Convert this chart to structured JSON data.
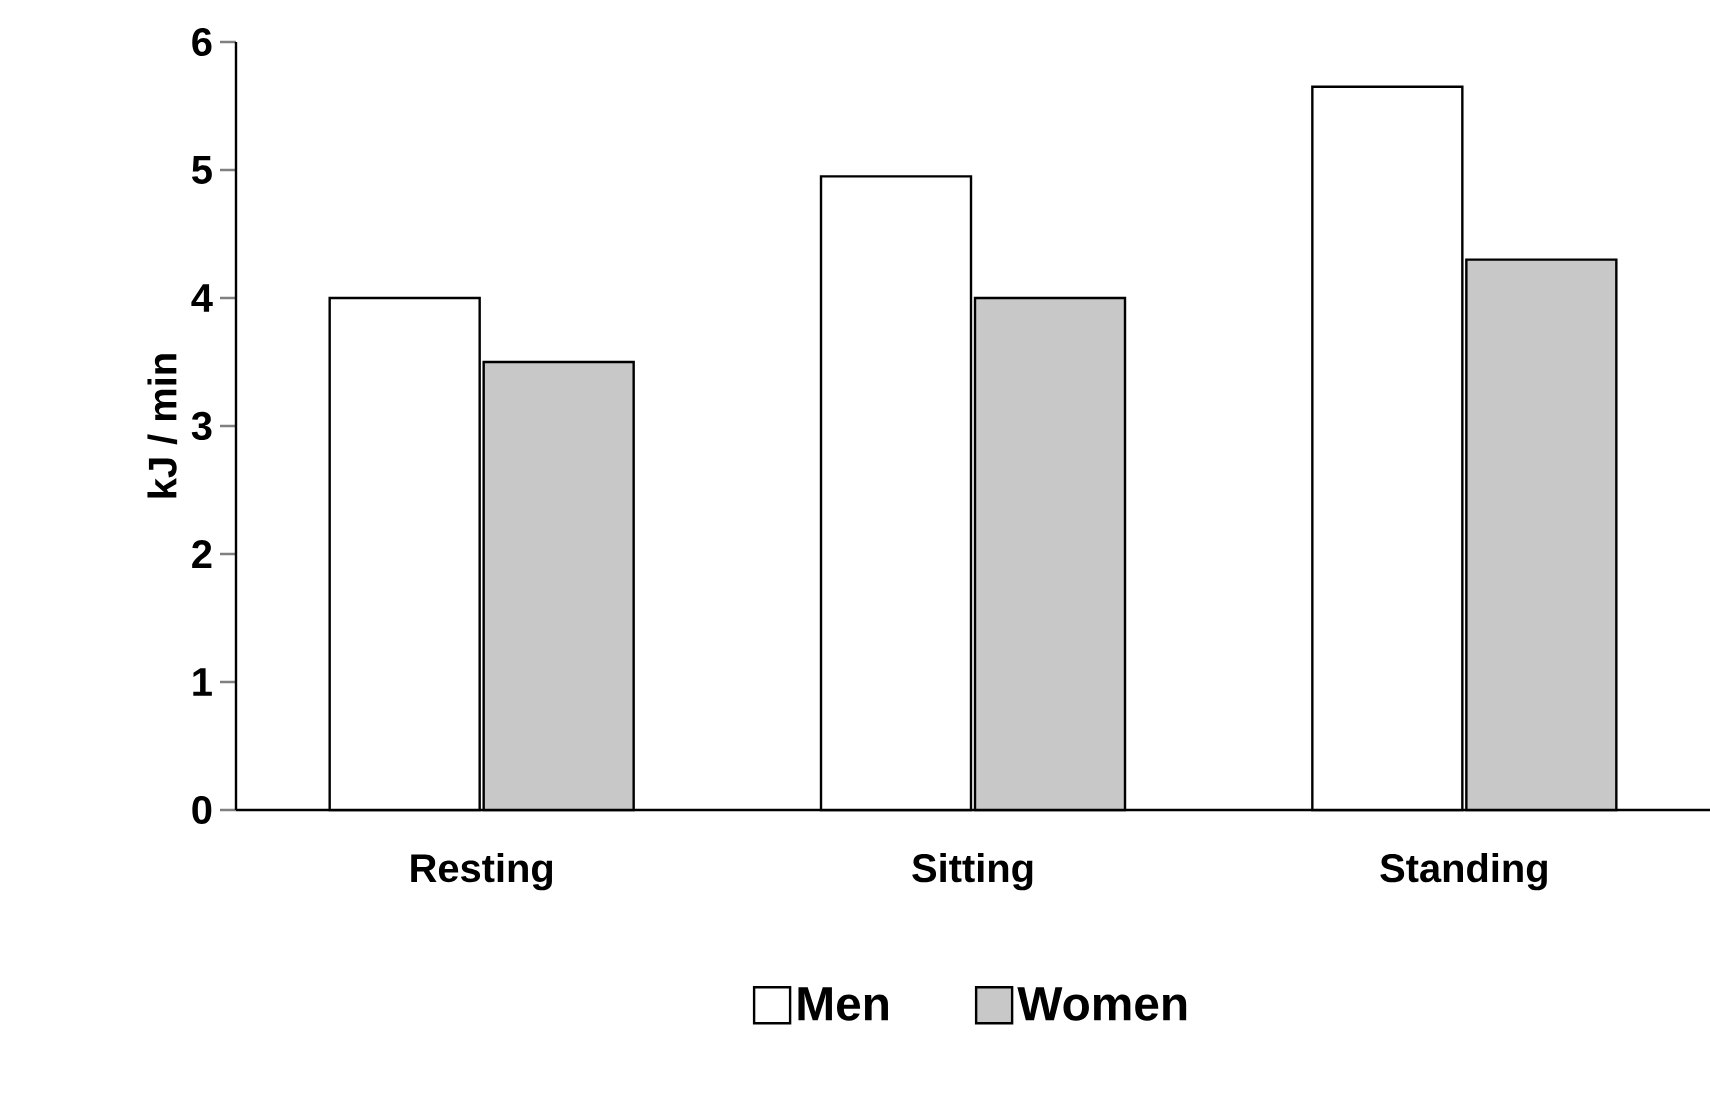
{
  "chart_data": {
    "type": "bar",
    "ylabel": "kJ / min",
    "categories": [
      "Resting",
      "Sitting",
      "Standing"
    ],
    "series": [
      {
        "name": "Men",
        "color": "#ffffff",
        "values": [
          4.0,
          4.95,
          5.65
        ]
      },
      {
        "name": "Women",
        "color": "#c8c8c8",
        "values": [
          3.5,
          4.0,
          4.3
        ]
      }
    ],
    "ylim": [
      0,
      6
    ],
    "yticks": [
      0,
      1,
      2,
      3,
      4,
      5,
      6
    ],
    "legend": "bottom",
    "grid": false
  }
}
